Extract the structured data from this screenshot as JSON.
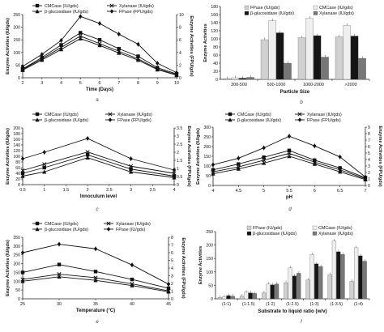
{
  "chart_data": [
    {
      "id": "a",
      "type": "line",
      "panel_label": "a",
      "xlabel": "Time (Days)",
      "ylabel": "Enzyme Activities (IU/gds)",
      "y2label": "Enzyme Activities (FPU/gds)",
      "x": [
        2,
        3,
        4,
        5,
        6,
        7,
        8,
        9,
        10
      ],
      "xlim": [
        2,
        10
      ],
      "xticks": [
        2,
        3,
        4,
        5,
        6,
        7,
        8,
        9,
        10
      ],
      "ylim": [
        0,
        250
      ],
      "yticks": [
        0,
        50,
        100,
        150,
        200,
        250
      ],
      "y2lim": [
        0,
        10
      ],
      "y2ticks": [
        0,
        2,
        4,
        6,
        8,
        10
      ],
      "legend": [
        "CMCase (IU/gds)",
        "Xylanase (IU/gds)",
        "β-glucosidase (IU/gds)",
        "FPase (FPU/gds)"
      ],
      "series": [
        {
          "name": "CMCase (IU/gds)",
          "axis": "left",
          "marker": "square",
          "values": [
            35,
            80,
            130,
            178,
            150,
            115,
            85,
            40,
            15
          ]
        },
        {
          "name": "Xylanase (IU/gds)",
          "axis": "left",
          "marker": "cross",
          "values": [
            33,
            75,
            120,
            165,
            135,
            105,
            75,
            35,
            12
          ]
        },
        {
          "name": "β-glucosidase (IU/gds)",
          "axis": "left",
          "marker": "triangle",
          "values": [
            30,
            70,
            112,
            155,
            128,
            98,
            70,
            32,
            10
          ]
        },
        {
          "name": "FPase (FPU/gds)",
          "axis": "right",
          "marker": "diamond",
          "values": [
            1.8,
            3.7,
            5.9,
            9.7,
            8.6,
            6.9,
            5.3,
            2.3,
            0.8
          ]
        }
      ]
    },
    {
      "id": "b",
      "type": "bar",
      "panel_label": "b",
      "xlabel": "Particle Size",
      "ylabel": "Enzyme Activities",
      "categories": [
        "300-500",
        "500-1000",
        "1000-2000",
        ">2000"
      ],
      "ylim": [
        0,
        180
      ],
      "yticks": [
        0,
        20,
        40,
        60,
        80,
        100,
        120,
        140,
        160,
        180
      ],
      "legend": [
        "FPase (IU/gds)",
        "CMCase (IU/gds)",
        "β-glucosidase (IU/gds)",
        "Xylanase (IU/gds)"
      ],
      "series": [
        {
          "name": "FPase (IU/gds)",
          "values": [
            2,
            98,
            103,
            105
          ]
        },
        {
          "name": "CMCase (IU/gds)",
          "values": [
            4,
            145,
            151,
            133
          ]
        },
        {
          "name": "β-glucosidase (IU/gds)",
          "values": [
            3,
            115,
            108,
            107
          ]
        },
        {
          "name": "Xylanase (IU/gds)",
          "values": [
            5,
            40,
            55,
            52
          ]
        }
      ]
    },
    {
      "id": "c",
      "type": "line",
      "panel_label": "c",
      "xlabel": "Innoculum level",
      "ylabel": "Enzyme Activities (IU/gds)",
      "y2label": "Enzyme Activities (FPU/gds)",
      "x": [
        0.5,
        1,
        2,
        3,
        4
      ],
      "xlim": [
        0.5,
        4
      ],
      "xticks": [
        0.5,
        1,
        1.5,
        2,
        2.5,
        3,
        3.5,
        4
      ],
      "ylim": [
        0,
        200
      ],
      "yticks": [
        0,
        20,
        40,
        60,
        80,
        100,
        120,
        140,
        160,
        180,
        200
      ],
      "y2lim": [
        0,
        3.5
      ],
      "y2ticks": [
        0,
        0.5,
        1,
        1.5,
        2,
        2.5,
        3,
        3.5
      ],
      "legend": [
        "CMCase (IU/gds)",
        "Xylanase (IU/gds)",
        "β-glucosidase (IU/gds)",
        "FPase (FPU/gds)"
      ],
      "series": [
        {
          "name": "CMCase (IU/gds)",
          "axis": "left",
          "marker": "square",
          "values": [
            40,
            60,
            105,
            55,
            30
          ]
        },
        {
          "name": "Xylanase (IU/gds)",
          "axis": "left",
          "marker": "cross",
          "values": [
            50,
            72,
            115,
            65,
            40
          ]
        },
        {
          "name": "β-glucosidase (IU/gds)",
          "axis": "left",
          "marker": "triangle",
          "values": [
            30,
            45,
            95,
            45,
            25
          ]
        },
        {
          "name": "FPase (FPU/gds)",
          "axis": "right",
          "marker": "diamond",
          "values": [
            1.6,
            2.0,
            2.85,
            1.6,
            0.9
          ]
        }
      ]
    },
    {
      "id": "d",
      "type": "line",
      "panel_label": "d",
      "xlabel": "pH",
      "ylabel": "Enzyme Activities (IU/gds)",
      "y2label": "Enzyme Activities (FPU/gds)",
      "x": [
        4,
        4.5,
        5,
        5.5,
        6,
        6.5,
        7
      ],
      "xlim": [
        4,
        7
      ],
      "xticks": [
        4,
        4.5,
        5,
        5.5,
        6,
        6.5,
        7
      ],
      "ylim": [
        0,
        300
      ],
      "yticks": [
        0,
        50,
        100,
        150,
        200,
        250,
        300
      ],
      "y2lim": [
        0,
        9
      ],
      "y2ticks": [
        0,
        1,
        2,
        3,
        4,
        5,
        6,
        7,
        8,
        9
      ],
      "legend": [
        "CMCase (IU/gds)",
        "Xylanase (IU/gds)",
        "β-glucosidase (IU/gds)",
        "FPase (FPU/gds)"
      ],
      "series": [
        {
          "name": "CMCase (IU/gds)",
          "axis": "left",
          "marker": "square",
          "values": [
            80,
            110,
            145,
            180,
            130,
            90,
            40
          ]
        },
        {
          "name": "Xylanase (IU/gds)",
          "axis": "left",
          "marker": "cross",
          "values": [
            70,
            95,
            130,
            165,
            120,
            80,
            35
          ]
        },
        {
          "name": "β-glucosidase (IU/gds)",
          "axis": "left",
          "marker": "triangle",
          "values": [
            60,
            85,
            115,
            150,
            110,
            70,
            30
          ]
        },
        {
          "name": "FPase (FPU/gds)",
          "axis": "right",
          "marker": "diamond",
          "values": [
            3.2,
            4.2,
            5.8,
            7.6,
            6.1,
            4.4,
            1.3
          ]
        }
      ]
    },
    {
      "id": "e",
      "type": "line",
      "panel_label": "e",
      "xlabel": "Temperature (°C)",
      "ylabel": "Enzyme Activities (IU/gds)",
      "y2label": "Enzyme Activities (FPU/gds)",
      "x": [
        25,
        30,
        35,
        40,
        45
      ],
      "xlim": [
        25,
        45
      ],
      "xticks": [
        25,
        30,
        35,
        40,
        45
      ],
      "ylim": [
        0,
        350
      ],
      "yticks": [
        0,
        50,
        100,
        150,
        200,
        250,
        300,
        350
      ],
      "y2lim": [
        0,
        8
      ],
      "y2ticks": [
        0,
        1,
        2,
        3,
        4,
        5,
        6,
        7,
        8
      ],
      "legend": [
        "CMCase (IU/gds)",
        "Xylanase (IU/gds)",
        "β-glucosidase (IU/gds)",
        "FPase (IU/gds)"
      ],
      "series": [
        {
          "name": "CMCase (IU/gds)",
          "axis": "left",
          "marker": "square",
          "values": [
            150,
            195,
            155,
            110,
            60
          ]
        },
        {
          "name": "Xylanase (IU/gds)",
          "axis": "left",
          "marker": "cross",
          "values": [
            110,
            140,
            120,
            85,
            45
          ]
        },
        {
          "name": "β-glucosidase (IU/gds)",
          "axis": "left",
          "marker": "triangle",
          "values": [
            100,
            125,
            105,
            75,
            40
          ]
        },
        {
          "name": "FPase (IU/gds)",
          "axis": "right",
          "marker": "diamond",
          "values": [
            6.0,
            7.1,
            6.5,
            4.4,
            1.9
          ]
        }
      ]
    },
    {
      "id": "f",
      "type": "bar",
      "panel_label": "f",
      "xlabel": "Substrate to liquid ratio (w/v)",
      "ylabel": "Enzyme Activities",
      "categories": [
        "(1:1)",
        "(1:1.5)",
        "(1:2)",
        "(1:2.5)",
        "(1:3)",
        "(1:3.5)",
        "(1:4)"
      ],
      "ylim": [
        0,
        250
      ],
      "yticks": [
        0,
        50,
        100,
        150,
        200,
        250
      ],
      "legend": [
        "FPase (IU/gds)",
        "CMCase (IU/gds)",
        "β-glucosidase (IU/gds)",
        "Xylanase (IU/gds)"
      ],
      "series": [
        {
          "name": "FPase (IU/gds)",
          "values": [
            5,
            10,
            22,
            60,
            70,
            90,
            65
          ]
        },
        {
          "name": "CMCase (IU/gds)",
          "values": [
            7,
            25,
            55,
            115,
            165,
            215,
            190
          ]
        },
        {
          "name": "β-glucosidase (IU/gds)",
          "values": [
            12,
            22,
            52,
            85,
            130,
            175,
            160
          ]
        },
        {
          "name": "Xylanase (IU/gds)",
          "values": [
            10,
            20,
            55,
            95,
            120,
            165,
            140
          ]
        }
      ]
    }
  ]
}
